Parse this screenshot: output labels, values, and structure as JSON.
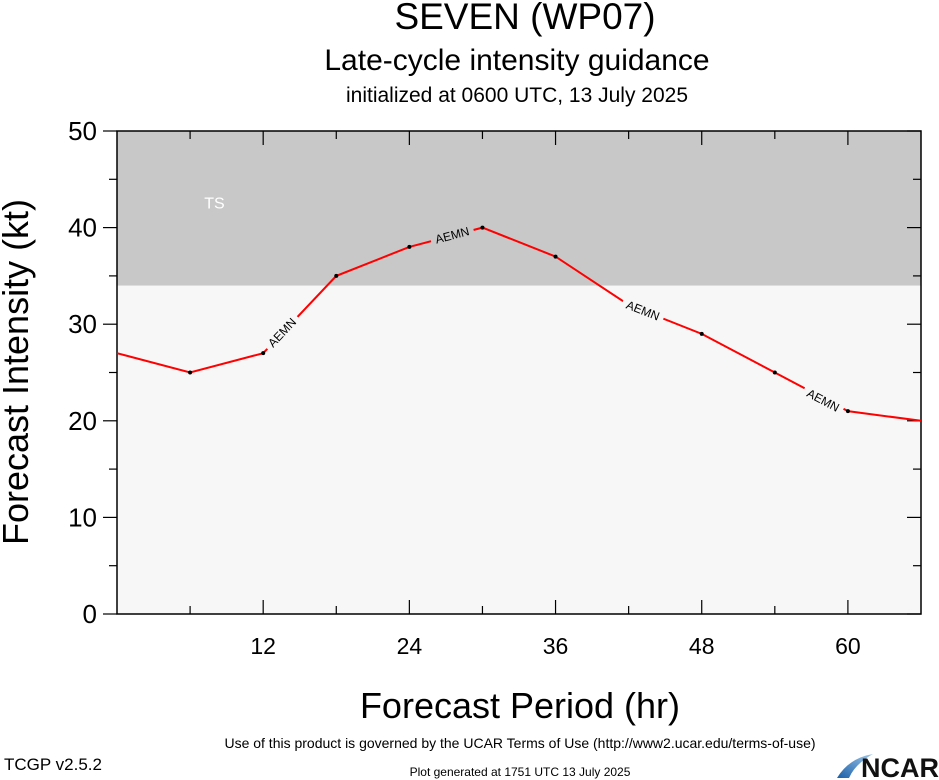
{
  "header": {
    "title": "SEVEN (WP07)",
    "subtitle": "Late-cycle intensity guidance",
    "init_text": "initialized at 0600 UTC, 13 July 2025"
  },
  "footer": {
    "terms": "Use of this product is governed by the UCAR Terms of Use (http://www2.ucar.edu/terms-of-use)",
    "version": "TCGP v2.5.2",
    "generated": "Plot generated at 1751 UTC   13 July 2025",
    "logo_text": "NCAR"
  },
  "colors": {
    "ts_band": "#c8c8c8",
    "background": "#f7f7f7",
    "series_line": "#ff0000",
    "ts_label": "#ffffff"
  },
  "chart_data": {
    "type": "line",
    "xlabel": "Forecast Period (hr)",
    "ylabel": "Forecast Intensity (kt)",
    "xlim": [
      0,
      66
    ],
    "ylim": [
      0,
      50
    ],
    "xticks": [
      12,
      24,
      36,
      48,
      60
    ],
    "yticks": [
      0,
      10,
      20,
      30,
      40,
      50
    ],
    "bands": [
      {
        "label": "TS",
        "y_from": 34,
        "y_to": 50
      }
    ],
    "series": [
      {
        "name": "AEMN",
        "x": [
          0,
          6,
          12,
          18,
          24,
          30,
          36,
          42,
          48,
          54,
          60,
          66
        ],
        "y": [
          27,
          25,
          27,
          35,
          38,
          40,
          37,
          32,
          29,
          25,
          21,
          20
        ],
        "label_positions": [
          {
            "x": 13.5,
            "y": 29.2
          },
          {
            "x": 27.5,
            "y": 39.3
          },
          {
            "x": 43.2,
            "y": 31.5
          },
          {
            "x": 58,
            "y": 22.2
          }
        ]
      }
    ]
  }
}
